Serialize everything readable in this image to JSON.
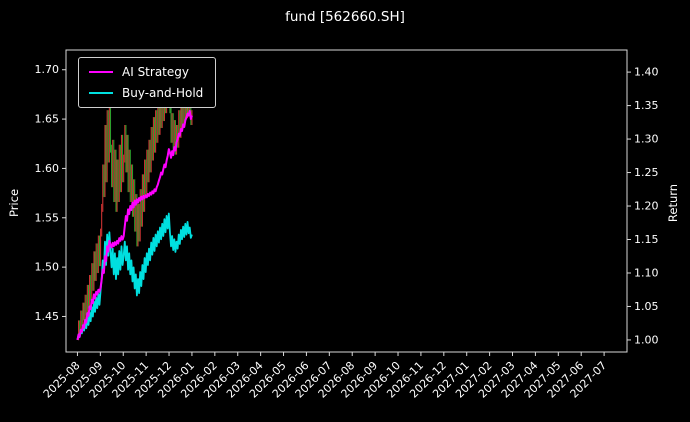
{
  "chart_data": {
    "type": "line",
    "title": "fund [562660.SH]",
    "background": "#000000",
    "spine_color": "#d9d9d9",
    "text_color": "#ffffff",
    "left_axis": {
      "label": "Price",
      "ticks": [
        1.45,
        1.5,
        1.55,
        1.6,
        1.65,
        1.7
      ],
      "range": [
        1.414,
        1.72
      ]
    },
    "right_axis": {
      "label": "Return",
      "ticks": [
        1.0,
        1.05,
        1.1,
        1.15,
        1.2,
        1.25,
        1.3,
        1.35,
        1.4
      ],
      "range": [
        0.982,
        1.433
      ]
    },
    "x_axis": {
      "tick_labels": [
        "2025-08",
        "2025-09",
        "2025-10",
        "2025-11",
        "2025-12",
        "2026-01",
        "2026-02",
        "2026-03",
        "2026-04",
        "2026-05",
        "2026-06",
        "2026-07",
        "2026-08",
        "2026-09",
        "2026-10",
        "2026-11",
        "2026-12",
        "2027-01",
        "2027-02",
        "2027-03",
        "2027-04",
        "2027-05",
        "2027-06",
        "2027-07"
      ],
      "range_months": [
        -0.5,
        24.0
      ],
      "data_month_span": [
        0,
        5.0
      ]
    },
    "legend": {
      "position": "upper-left",
      "entries": [
        {
          "label": "AI Strategy",
          "color": "#ff00ff"
        },
        {
          "label": "Buy-and-Hold",
          "color": "#00e0e0"
        }
      ]
    },
    "series": {
      "price": {
        "name": "fund daily price bars",
        "axis": "left",
        "style": "ohlc-bars",
        "up_color": "#cc3333",
        "down_color": "#2ca02c",
        "close": [
          1.43,
          1.442,
          1.436,
          1.452,
          1.444,
          1.46,
          1.45,
          1.468,
          1.455,
          1.478,
          1.462,
          1.488,
          1.47,
          1.5,
          1.48,
          1.512,
          1.49,
          1.52,
          1.498,
          1.528,
          1.505,
          1.535,
          1.56,
          1.6,
          1.575,
          1.64,
          1.59,
          1.655,
          1.61,
          1.66,
          1.62,
          1.585,
          1.625,
          1.57,
          1.615,
          1.56,
          1.605,
          1.57,
          1.62,
          1.58,
          1.63,
          1.59,
          1.61,
          1.64,
          1.6,
          1.63,
          1.58,
          1.615,
          1.57,
          1.6,
          1.555,
          1.585,
          1.54,
          1.57,
          1.525,
          1.56,
          1.53,
          1.575,
          1.545,
          1.59,
          1.56,
          1.605,
          1.575,
          1.615,
          1.59,
          1.625,
          1.6,
          1.638,
          1.612,
          1.648,
          1.62,
          1.655,
          1.63,
          1.662,
          1.638,
          1.67,
          1.645,
          1.678,
          1.652,
          1.688,
          1.66,
          1.695,
          1.668,
          1.7,
          1.66,
          1.63,
          1.652,
          1.622,
          1.645,
          1.618,
          1.64,
          1.625,
          1.655,
          1.635,
          1.665,
          1.645,
          1.672,
          1.65,
          1.678,
          1.655,
          1.682,
          1.658,
          1.67,
          1.648,
          1.655
        ]
      },
      "ai_strategy": {
        "name": "AI Strategy",
        "axis": "right",
        "color": "#ff00ff",
        "values": [
          1.0,
          1.008,
          1.005,
          1.015,
          1.012,
          1.022,
          1.018,
          1.03,
          1.026,
          1.04,
          1.036,
          1.05,
          1.046,
          1.06,
          1.055,
          1.068,
          1.062,
          1.072,
          1.068,
          1.075,
          1.072,
          1.078,
          1.09,
          1.105,
          1.1,
          1.125,
          1.118,
          1.14,
          1.132,
          1.148,
          1.142,
          1.138,
          1.145,
          1.14,
          1.146,
          1.142,
          1.148,
          1.144,
          1.152,
          1.148,
          1.155,
          1.15,
          1.155,
          1.17,
          1.185,
          1.178,
          1.195,
          1.188,
          1.2,
          1.194,
          1.205,
          1.198,
          1.208,
          1.202,
          1.21,
          1.205,
          1.212,
          1.208,
          1.214,
          1.21,
          1.215,
          1.212,
          1.216,
          1.213,
          1.218,
          1.215,
          1.22,
          1.217,
          1.222,
          1.219,
          1.225,
          1.222,
          1.228,
          1.232,
          1.238,
          1.243,
          1.25,
          1.247,
          1.255,
          1.262,
          1.258,
          1.268,
          1.275,
          1.285,
          1.28,
          1.272,
          1.282,
          1.276,
          1.288,
          1.283,
          1.295,
          1.3,
          1.308,
          1.305,
          1.315,
          1.312,
          1.322,
          1.318,
          1.328,
          1.332,
          1.338,
          1.335,
          1.342,
          1.33,
          1.335
        ]
      },
      "buy_and_hold": {
        "name": "Buy-and-Hold",
        "axis": "right",
        "color": "#00e0e0",
        "derived_from": "price.close divided by first close (normalized return)"
      }
    }
  }
}
